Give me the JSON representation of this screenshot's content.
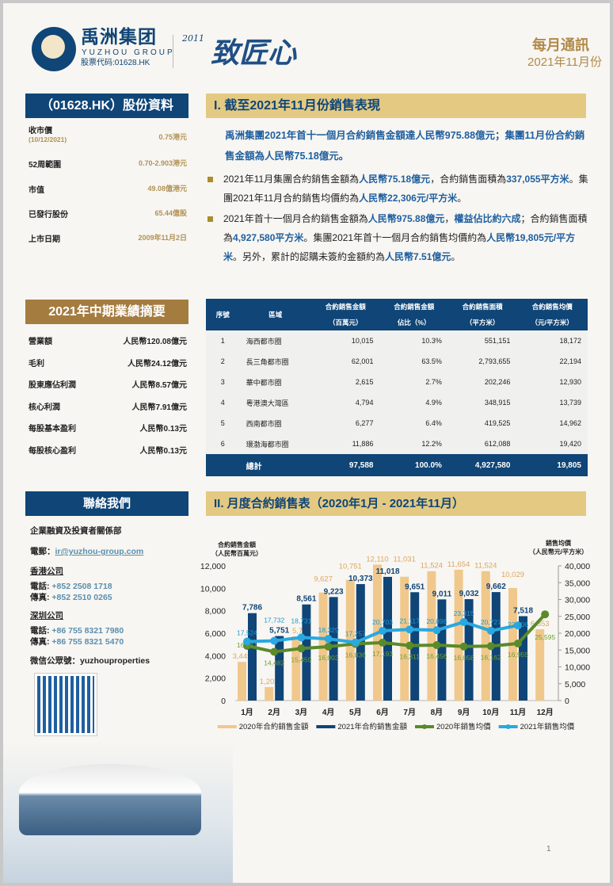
{
  "header": {
    "logo_cn": "禹洲集团",
    "logo_en": "YUZHOU GROUP",
    "stock_code": "股票代码:01628.HK",
    "slogan": "致匠心",
    "slogan_prefix": "2011",
    "newsletter": "每月通訊",
    "month": "2021年11月份"
  },
  "stock": {
    "title": "（01628.HK）股份資料",
    "rows": [
      {
        "label": "收市價",
        "sub": "(10/12/2021)",
        "value": "0.75港元"
      },
      {
        "label": "52周範圍",
        "value": "0.70-2.903港元"
      },
      {
        "label": "市值",
        "value": "49.08億港元"
      },
      {
        "label": "已發行股份",
        "value": "65.44億股"
      },
      {
        "label": "上市日期",
        "value": "2009年11月2日"
      }
    ]
  },
  "interim": {
    "title": "2021年中期業績摘要",
    "rows": [
      {
        "label": "營業額",
        "value": "人民幣120.08億元"
      },
      {
        "label": "毛利",
        "value": "人民幣24.12億元"
      },
      {
        "label": "股東應佔利潤",
        "value": "人民幣8.57億元"
      },
      {
        "label": "核心利潤",
        "value": "人民幣7.91億元"
      },
      {
        "label": "每股基本盈利",
        "value": "人民幣0.13元"
      },
      {
        "label": "每股核心盈利",
        "value": "人民幣0.13元"
      }
    ]
  },
  "contact": {
    "title": "聯絡我們",
    "dept": "企業融資及投資者關係部",
    "email_label": "電郵：",
    "email": "ir@yuzhou-group.com",
    "hk": {
      "name": "香港公司",
      "tel_label": "電話: ",
      "tel": "+852 2508 1718",
      "fax_label": "傳真: ",
      "fax": "+852 2510 0265"
    },
    "sz": {
      "name": "深圳公司",
      "tel_label": "電話: ",
      "tel": "+86 755 8321 7980",
      "fax_label": "傳真: ",
      "fax": "+86 755 8321 5470"
    },
    "wechat": "微信公眾號：yuzhouproperties"
  },
  "section1": {
    "title": "I. 截至2021年11月份銷售表現",
    "lead": "禹洲集團2021年首十一個月合約銷售金額達人民幣975.88億元；集團11月份合約銷售金額為人民幣75.18億元。",
    "b1": [
      "2021年11月集團合約銷售金額為",
      "人民幣75.18億元",
      "，合約銷售面積為",
      "337,055平方米",
      "。集團2021年11月合約銷售均價約為",
      "人民幣22,306元/平方米",
      "。"
    ],
    "b2": [
      "2021年首十一個月合約銷售金額為",
      "人民幣975.88億元",
      "，",
      "權益佔比約六成",
      "；合約銷售面積為",
      "4,927,580平方米",
      "。集團2021年首十一個月合約銷售均價約為",
      "人民幣19,805元/平方米",
      "。另外，累計的認購未簽約金額約為",
      "人民幣7.51億元",
      "。"
    ]
  },
  "table": {
    "headers": [
      [
        "序號",
        ""
      ],
      [
        "區域",
        ""
      ],
      [
        "合約銷售金額",
        "（百萬元）"
      ],
      [
        "合約銷售金額",
        "佔比（%）"
      ],
      [
        "合約銷售面積",
        "（平方米）"
      ],
      [
        "合約銷售均價",
        "（元/平方米）"
      ]
    ],
    "rows": [
      [
        "1",
        "海西都市圈",
        "10,015",
        "10.3%",
        "551,151",
        "18,172"
      ],
      [
        "2",
        "長三角都市圈",
        "62,001",
        "63.5%",
        "2,793,655",
        "22,194"
      ],
      [
        "3",
        "華中都市圈",
        "2,615",
        "2.7%",
        "202,246",
        "12,930"
      ],
      [
        "4",
        "粵港澳大灣區",
        "4,794",
        "4.9%",
        "348,915",
        "13,739"
      ],
      [
        "5",
        "西南都市圈",
        "6,277",
        "6.4%",
        "419,525",
        "14,962"
      ],
      [
        "6",
        "環渤海都市圈",
        "11,886",
        "12.2%",
        "612,088",
        "19,420"
      ]
    ],
    "total": [
      "",
      "總計",
      "97,588",
      "100.0%",
      "4,927,580",
      "19,805"
    ]
  },
  "section2": {
    "title": "II. 月度合約銷售表（2020年1月 - 2021年11月）"
  },
  "chart_data": {
    "type": "bar",
    "categories": [
      "1月",
      "2月",
      "3月",
      "4月",
      "5月",
      "6月",
      "7月",
      "8月",
      "9月",
      "10月",
      "11月",
      "12月"
    ],
    "ylabel": "合約銷售金額（人民幣百萬元）",
    "y2label": "銷售均價（人民幣元/平方米）",
    "ylim": [
      0,
      12000
    ],
    "yticks": [
      0,
      2000,
      4000,
      6000,
      8000,
      10000,
      12000
    ],
    "y2lim": [
      0,
      40000
    ],
    "y2ticks": [
      0,
      5000,
      10000,
      15000,
      20000,
      25000,
      30000,
      35000,
      40000
    ],
    "legend_position": "bottom",
    "series": [
      {
        "name": "2020年合約銷售金額",
        "kind": "bar",
        "axis": "left",
        "color": "#f0c88c",
        "values": [
          3445,
          1202,
          5717,
          9627,
          10751,
          12110,
          11031,
          11524,
          11654,
          11524,
          10029,
          6353
        ]
      },
      {
        "name": "2021年合約銷售金額",
        "kind": "bar",
        "axis": "left",
        "color": "#0f4577",
        "values": [
          7786,
          5751,
          8561,
          9223,
          10373,
          11018,
          9651,
          9011,
          9032,
          9662,
          7518,
          null
        ]
      },
      {
        "name": "2020年銷售均價",
        "kind": "line",
        "axis": "right",
        "color": "#5a8a2a",
        "values": [
          16241,
          14482,
          15459,
          16003,
          16836,
          17193,
          16311,
          16456,
          16058,
          16162,
          16955,
          25595
        ]
      },
      {
        "name": "2021年銷售均價",
        "kind": "line",
        "axis": "right",
        "color": "#2aa8e0",
        "values": [
          17524,
          17732,
          18731,
          18329,
          17257,
          20703,
          21117,
          20898,
          23315,
          20727,
          22306,
          null
        ]
      }
    ]
  },
  "page_number": "1"
}
